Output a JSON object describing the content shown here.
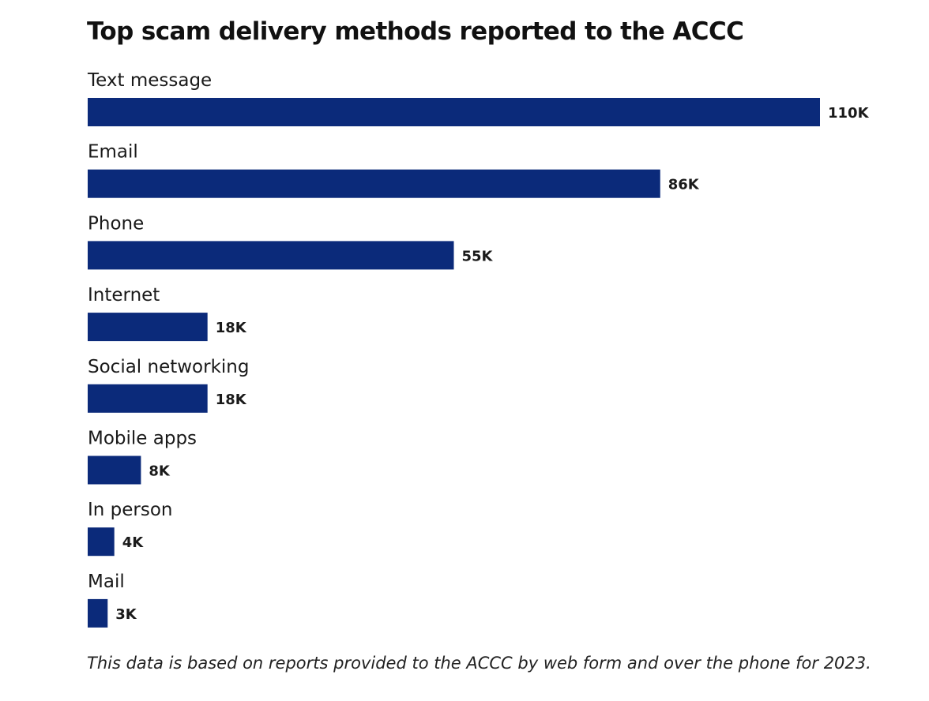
{
  "chart_data": {
    "type": "bar",
    "orientation": "horizontal",
    "title": "Top scam delivery methods reported to the ACCC",
    "categories": [
      "Text message",
      "Email",
      "Phone",
      "Internet",
      "Social networking",
      "Mobile apps",
      "In person",
      "Mail"
    ],
    "values": [
      110000,
      86000,
      55000,
      18000,
      18000,
      8000,
      4000,
      3000
    ],
    "value_labels": [
      "110K",
      "86K",
      "55K",
      "18K",
      "18K",
      "8K",
      "4K",
      "3K"
    ],
    "xlabel": "",
    "ylabel": "",
    "xlim": [
      0,
      110000
    ],
    "grid": false,
    "legend": "none",
    "bar_color": "#0b2a7a",
    "footnote": "This data is based on reports provided to the ACCC by web form and over the phone for 2023."
  }
}
